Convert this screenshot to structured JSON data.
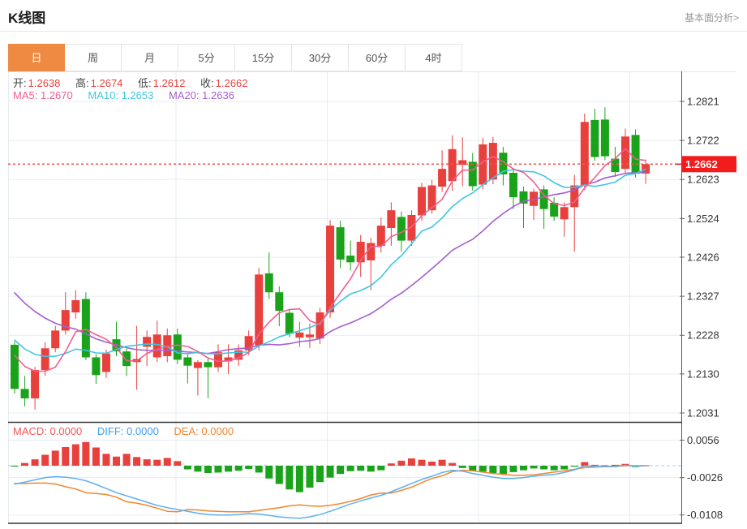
{
  "header": {
    "title": "K线图",
    "link": "基本面分析>"
  },
  "tabs": {
    "items": [
      "日",
      "周",
      "月",
      "5分",
      "15分",
      "30分",
      "60分",
      "4时"
    ],
    "active_index": 0
  },
  "ohlc_legend": {
    "open_label": "开:",
    "open_value": "1.2638",
    "high_label": "高:",
    "high_value": "1.2674",
    "low_label": "低:",
    "low_value": "1.2612",
    "close_label": "收:",
    "close_value": "1.2662"
  },
  "ma_legend": {
    "ma5_label": "MA5:",
    "ma5_value": "1.2670",
    "ma10_label": "MA10:",
    "ma10_value": "1.2653",
    "ma20_label": "MA20:",
    "ma20_value": "1.2636"
  },
  "macd_legend": {
    "macd_label": "MACD:",
    "macd_value": "0.0000",
    "diff_label": "DIFF:",
    "diff_value": "0.0000",
    "dea_label": "DEA:",
    "dea_value": "0.0000"
  },
  "colors": {
    "up": "#e8403c",
    "down": "#1aa31a",
    "ma5": "#ef5f91",
    "ma10": "#3fc6e0",
    "ma20": "#a35fd0",
    "diff_line": "#5fb0ef",
    "dea_line": "#f0862c",
    "price_line": "#f55353",
    "price_tag_bg": "#f21c1c",
    "price_tag_text": "#ffffff",
    "grid": "#e7ecf2",
    "axis": "#555555",
    "frame": "#333333",
    "tick_text": "#333333",
    "zero_dash": "#9bd7f0",
    "tab_active": "#ef8a43"
  },
  "chart_data": {
    "type": "candlestick+macd",
    "title": "K线图 (日K)",
    "legend_position": "top-left",
    "grid": true,
    "y_axis_ticks_main": [
      1.2821,
      1.2722,
      1.2623,
      1.2524,
      1.2426,
      1.2327,
      1.2228,
      1.213,
      1.2031
    ],
    "y_axis_ticks_macd": [
      0.0056,
      -0.0026,
      -0.0108
    ],
    "main_ylim": [
      1.2008,
      1.2897
    ],
    "macd_ylim": [
      -0.0127,
      0.0094
    ],
    "current_price": 1.2662,
    "current_price_label": "1.2662",
    "last_ohlc": {
      "open": 1.2638,
      "high": 1.2674,
      "low": 1.2612,
      "close": 1.2662
    },
    "ma_last": {
      "ma5": 1.267,
      "ma10": 1.2653,
      "ma20": 1.2636
    },
    "macd_last": {
      "macd": 0.0,
      "diff": 0.0,
      "dea": 0.0
    },
    "candles_ohlc": [
      [
        1.2204,
        1.2212,
        1.208,
        1.2092
      ],
      [
        1.2092,
        1.2125,
        1.2048,
        1.2068
      ],
      [
        1.2068,
        1.2148,
        1.204,
        1.214
      ],
      [
        1.214,
        1.221,
        1.2125,
        1.2195
      ],
      [
        1.2195,
        1.2252,
        1.2185,
        1.224
      ],
      [
        1.224,
        1.2337,
        1.223,
        1.2292
      ],
      [
        1.2286,
        1.2342,
        1.227,
        1.2317
      ],
      [
        1.232,
        1.2337,
        1.2165,
        1.2172
      ],
      [
        1.2172,
        1.218,
        1.2105,
        1.2127
      ],
      [
        1.2135,
        1.2192,
        1.212,
        1.2182
      ],
      [
        1.2218,
        1.2262,
        1.2175,
        1.2187
      ],
      [
        1.2187,
        1.2195,
        1.2125,
        1.215
      ],
      [
        1.216,
        1.2252,
        1.209,
        1.2168
      ],
      [
        1.2199,
        1.224,
        1.215,
        1.2224
      ],
      [
        1.2172,
        1.2265,
        1.216,
        1.223
      ],
      [
        1.2175,
        1.2245,
        1.216,
        1.2228
      ],
      [
        1.223,
        1.2245,
        1.2155,
        1.2166
      ],
      [
        1.2172,
        1.218,
        1.2106,
        1.2151
      ],
      [
        1.2145,
        1.2165,
        1.2075,
        1.216
      ],
      [
        1.216,
        1.2172,
        1.2069,
        1.2147
      ],
      [
        1.2147,
        1.2205,
        1.2135,
        1.2185
      ],
      [
        1.2162,
        1.2205,
        1.213,
        1.2172
      ],
      [
        1.2166,
        1.2205,
        1.215,
        1.219
      ],
      [
        1.219,
        1.224,
        1.2178,
        1.2226
      ],
      [
        1.2203,
        1.2399,
        1.219,
        1.2382
      ],
      [
        1.2385,
        1.2438,
        1.232,
        1.2337
      ],
      [
        1.2337,
        1.2352,
        1.2251,
        1.229
      ],
      [
        1.2285,
        1.2295,
        1.2223,
        1.2232
      ],
      [
        1.2222,
        1.2262,
        1.2198,
        1.2235
      ],
      [
        1.2223,
        1.2258,
        1.2196,
        1.223
      ],
      [
        1.222,
        1.2298,
        1.2206,
        1.2286
      ],
      [
        1.2286,
        1.252,
        1.2272,
        1.2506
      ],
      [
        1.2502,
        1.2519,
        1.2398,
        1.242
      ],
      [
        1.243,
        1.2468,
        1.2392,
        1.2413
      ],
      [
        1.2413,
        1.2482,
        1.2376,
        1.2465
      ],
      [
        1.2418,
        1.2475,
        1.2342,
        1.2462
      ],
      [
        1.2455,
        1.2527,
        1.2438,
        1.2506
      ],
      [
        1.25,
        1.2565,
        1.2455,
        1.2545
      ],
      [
        1.2528,
        1.2542,
        1.244,
        1.2468
      ],
      [
        1.2468,
        1.2545,
        1.2455,
        1.2533
      ],
      [
        1.2532,
        1.2615,
        1.2518,
        1.2604
      ],
      [
        1.2545,
        1.2622,
        1.2536,
        1.2608
      ],
      [
        1.2605,
        1.2697,
        1.2592,
        1.265
      ],
      [
        1.2619,
        1.2735,
        1.2594,
        1.27
      ],
      [
        1.266,
        1.273,
        1.2606,
        1.2672
      ],
      [
        1.2668,
        1.269,
        1.2595,
        1.2606
      ],
      [
        1.261,
        1.2729,
        1.2598,
        1.2712
      ],
      [
        1.2623,
        1.2731,
        1.2611,
        1.2716
      ],
      [
        1.2691,
        1.2706,
        1.2608,
        1.2636
      ],
      [
        1.264,
        1.2652,
        1.2548,
        1.2578
      ],
      [
        1.2593,
        1.2605,
        1.25,
        1.2562
      ],
      [
        1.2556,
        1.26,
        1.252,
        1.2592
      ],
      [
        1.2598,
        1.2608,
        1.2498,
        1.2548
      ],
      [
        1.2564,
        1.2578,
        1.2518,
        1.2529
      ],
      [
        1.2522,
        1.2565,
        1.2478,
        1.2553
      ],
      [
        1.2553,
        1.2635,
        1.244,
        1.2608
      ],
      [
        1.2608,
        1.279,
        1.2596,
        1.2769
      ],
      [
        1.2774,
        1.2802,
        1.267,
        1.268
      ],
      [
        1.2775,
        1.2806,
        1.2672,
        1.2682
      ],
      [
        1.2676,
        1.2706,
        1.263,
        1.2642
      ],
      [
        1.265,
        1.2752,
        1.264,
        1.2732
      ],
      [
        1.2736,
        1.275,
        1.2628,
        1.2638
      ],
      [
        1.2638,
        1.2674,
        1.2612,
        1.2662
      ]
    ],
    "ma_warmup_closes": [
      1.262,
      1.259,
      1.256,
      1.253,
      1.25,
      1.247,
      1.244,
      1.241,
      1.238,
      1.235,
      1.232,
      1.2295,
      1.2272,
      1.2252,
      1.2235,
      1.222,
      1.2208,
      1.22,
      1.2195,
      1.219
    ],
    "macd": {
      "hist": [
        -0.0002,
        0.0006,
        0.0014,
        0.0024,
        0.0033,
        0.0041,
        0.0047,
        0.0052,
        0.004,
        0.0026,
        0.002,
        0.0026,
        0.0019,
        0.0014,
        0.0013,
        0.0017,
        0.001,
        -0.0008,
        -0.0013,
        -0.0016,
        -0.0015,
        -0.0013,
        -0.0011,
        -0.0007,
        -0.0015,
        -0.0028,
        -0.004,
        -0.0052,
        -0.0058,
        -0.0048,
        -0.0036,
        -0.0026,
        -0.0018,
        -0.0012,
        -0.0011,
        -0.0013,
        -0.001,
        0.0005,
        0.0011,
        0.0016,
        0.0013,
        0.0009,
        0.0013,
        0.0006,
        -0.0005,
        -0.0011,
        -0.0013,
        -0.0016,
        -0.0018,
        -0.0014,
        -0.001,
        -0.0006,
        -0.0008,
        -0.001,
        -0.0008,
        -0.0002,
        0.0008,
        0.0002,
        0.0001,
        0.0002,
        0.0004,
        -0.0003,
        0.0001
      ],
      "diff": [
        -0.004,
        -0.0036,
        -0.0031,
        -0.0026,
        -0.0024,
        -0.0025,
        -0.0028,
        -0.0033,
        -0.0041,
        -0.005,
        -0.0059,
        -0.0066,
        -0.0073,
        -0.008,
        -0.0087,
        -0.0092,
        -0.0096,
        -0.01,
        -0.0104,
        -0.0107,
        -0.0108,
        -0.0108,
        -0.0107,
        -0.0105,
        -0.0106,
        -0.0109,
        -0.0112,
        -0.0114,
        -0.0115,
        -0.0112,
        -0.0107,
        -0.01,
        -0.0092,
        -0.0084,
        -0.0077,
        -0.0071,
        -0.0065,
        -0.0057,
        -0.0048,
        -0.0039,
        -0.003,
        -0.0023,
        -0.0015,
        -0.001,
        -0.0012,
        -0.0017,
        -0.0021,
        -0.0025,
        -0.0028,
        -0.0028,
        -0.0026,
        -0.0023,
        -0.0021,
        -0.0019,
        -0.0015,
        -0.0009,
        0.0,
        -0.0002,
        -0.0002,
        -0.0001,
        0.0001,
        -0.0001,
        0.0
      ],
      "dea": [
        -0.0039,
        -0.0039,
        -0.0038,
        -0.0038,
        -0.004,
        -0.0046,
        -0.0051,
        -0.0059,
        -0.0061,
        -0.0063,
        -0.0069,
        -0.0079,
        -0.0082,
        -0.0087,
        -0.0093,
        -0.01,
        -0.0101,
        -0.0096,
        -0.0097,
        -0.0099,
        -0.01,
        -0.0101,
        -0.0101,
        -0.0101,
        -0.0098,
        -0.0095,
        -0.0092,
        -0.0088,
        -0.0086,
        -0.0088,
        -0.0089,
        -0.0087,
        -0.0083,
        -0.0078,
        -0.0072,
        -0.0064,
        -0.006,
        -0.006,
        -0.0054,
        -0.0047,
        -0.0037,
        -0.0028,
        -0.0022,
        -0.0013,
        -0.001,
        -0.0011,
        -0.0014,
        -0.0017,
        -0.0019,
        -0.0021,
        -0.0021,
        -0.002,
        -0.0017,
        -0.0014,
        -0.0011,
        -0.0008,
        -0.0004,
        -0.0003,
        -0.0002,
        -0.0002,
        0.0,
        0.0,
        0.0
      ]
    }
  }
}
